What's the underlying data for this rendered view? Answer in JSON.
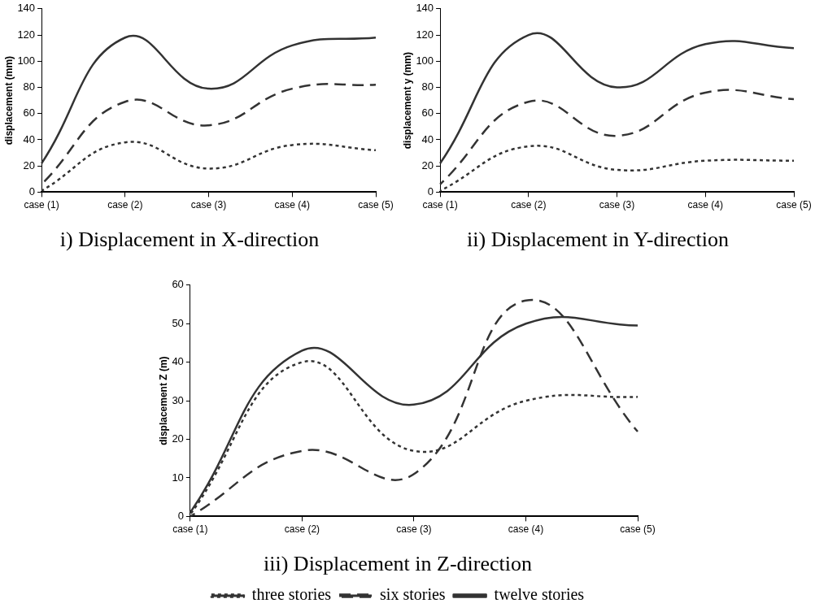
{
  "chart_data": [
    {
      "type": "line",
      "title": "i) Displacement in X-direction",
      "ylabel": "displacement (mm)",
      "categories": [
        "case (1)",
        "case (2)",
        "case (3)",
        "case (4)",
        "case (5)"
      ],
      "ylim": [
        0,
        140
      ],
      "yticks": [
        0,
        20,
        40,
        60,
        80,
        100,
        120,
        140
      ],
      "grid": false,
      "legend": false,
      "marker": "none",
      "series": [
        {
          "color": "#333333",
          "line_style": "dotted",
          "values": [
            1,
            38,
            18,
            36,
            32
          ]
        },
        {
          "color": "#333333",
          "line_style": "dashed",
          "values": [
            6,
            69,
            51,
            79,
            82
          ]
        },
        {
          "color": "#333333",
          "line_style": "solid",
          "values": [
            22,
            118,
            79,
            112,
            118
          ]
        }
      ]
    },
    {
      "type": "line",
      "title": "ii) Displacement in Y-direction",
      "ylabel": "displacement y (mm)",
      "categories": [
        "case (1)",
        "case (2)",
        "case (3)",
        "case (4)",
        "case (5)"
      ],
      "ylim": [
        0,
        140
      ],
      "yticks": [
        0,
        20,
        40,
        60,
        80,
        100,
        120,
        140
      ],
      "grid": false,
      "legend": false,
      "marker": "none",
      "series": [
        {
          "color": "#333333",
          "line_style": "dotted",
          "values": [
            1,
            35,
            17,
            24,
            24
          ]
        },
        {
          "color": "#333333",
          "line_style": "dashed",
          "values": [
            6,
            69,
            43,
            76,
            71
          ]
        },
        {
          "color": "#333333",
          "line_style": "solid",
          "values": [
            22,
            120,
            80,
            113,
            110
          ]
        }
      ]
    },
    {
      "type": "line",
      "title": "iii) Displacement in Z-direction",
      "ylabel": "displacement Z (m)",
      "categories": [
        "case (1)",
        "case (2)",
        "case (3)",
        "case (4)",
        "case (5)"
      ],
      "ylim": [
        0,
        60
      ],
      "yticks": [
        0,
        10,
        20,
        30,
        40,
        50,
        60
      ],
      "grid": false,
      "legend": "bottom",
      "marker": "none",
      "series": [
        {
          "name": "three stories",
          "color": "#333333",
          "line_style": "dotted",
          "values": [
            0.5,
            40,
            17,
            30,
            31
          ]
        },
        {
          "name": "six stories",
          "color": "#333333",
          "line_style": "dashed",
          "values": [
            0,
            17,
            11,
            56,
            22
          ]
        },
        {
          "name": "twelve stories",
          "color": "#333333",
          "line_style": "solid",
          "values": [
            1,
            43,
            29,
            50,
            49.5
          ]
        }
      ]
    }
  ]
}
